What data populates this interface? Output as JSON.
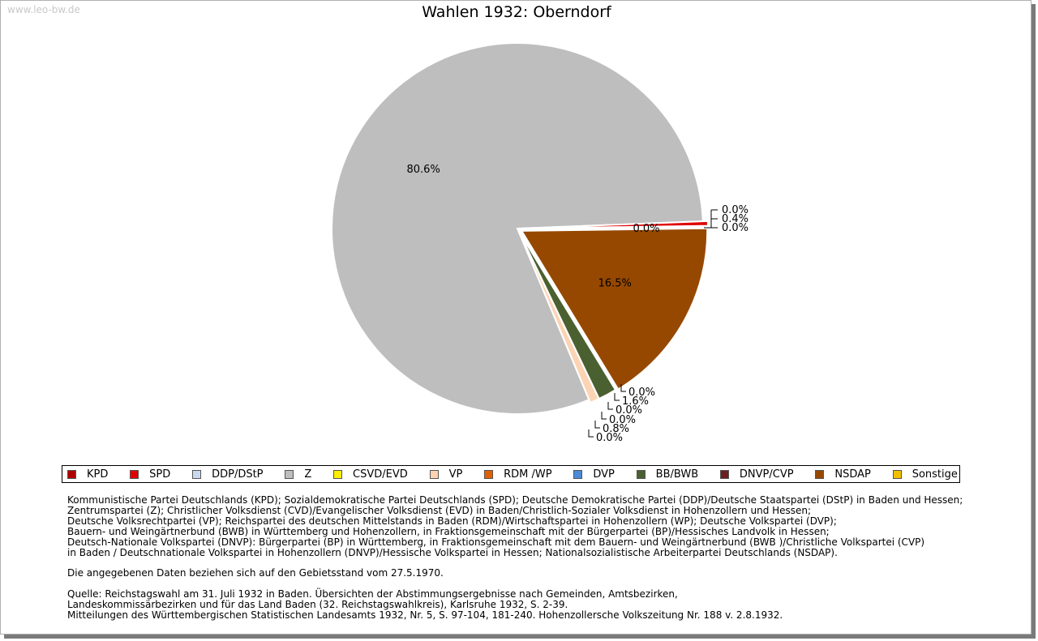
{
  "watermark": "www.leo-bw.de",
  "chart_data": {
    "type": "pie",
    "title": "Wahlen 1932: Oberndorf",
    "categories": [
      "KPD",
      "SPD",
      "DDP/DStP",
      "Z",
      "CSVD/EVD",
      "VP",
      "RDM /WP",
      "DVP",
      "BB/BWB",
      "DNVP/CVP",
      "NSDAP",
      "Sonstige"
    ],
    "values": [
      0.0,
      0.4,
      0.0,
      80.6,
      0.0,
      0.8,
      0.0,
      0.0,
      1.6,
      0.0,
      16.5,
      0.0
    ],
    "labels": [
      "0.0%",
      "0.4%",
      "0.0%",
      "80.6%",
      "0.0%",
      "0.8%",
      "0.0%",
      "0.0%",
      "1.6%",
      "0.0%",
      "16.5%",
      "0.0%"
    ],
    "colors": [
      "#b00000",
      "#e00000",
      "#c8d8f0",
      "#bebebe",
      "#ffee00",
      "#fcd3b3",
      "#e06000",
      "#4a8ad8",
      "#4a6030",
      "#6a2020",
      "#964800",
      "#f0c000"
    ],
    "legend_position": "bottom"
  },
  "notes": [
    "Kommunistische Partei Deutschlands (KPD); Sozialdemokratische Partei Deutschlands (SPD); Deutsche Demokratische Partei (DDP)/Deutsche Staatspartei (DStP) in Baden und Hessen;",
    "Zentrumspartei (Z); Christlicher Volksdienst (CVD)/Evangelischer Volksdienst (EVD) in Baden/Christlich-Sozialer Volksdienst in Hohenzollern und Hessen;",
    "Deutsche Volksrechtpartei (VP); Reichspartei des deutschen Mittelstands in Baden (RDM)/Wirtschaftspartei in Hohenzollern (WP); Deutsche Volkspartei (DVP);",
    "Bauern- und Weingärtnerbund (BWB) in Württemberg und Hohenzollern, in Fraktionsgemeinschaft mit der Bürgerpartei (BP)/Hessisches Landvolk in Hessen;",
    "Deutsch-Nationale Volkspartei (DNVP): Bürgerpartei (BP) in Württemberg, in Fraktionsgemeinschaft mit dem Bauern- und Weingärtnerbund (BWB )/Christliche Volkspartei (CVP)",
    "in Baden / Deutschnationale Volkspartei in Hohenzollern (DNVP)/Hessische Volkspartei in Hessen; Nationalsozialistische Arbeiterpartei Deutschlands (NSDAP).",
    "",
    "Die angegebenen Daten beziehen sich auf den Gebietsstand vom 27.5.1970.",
    "",
    "Quelle: Reichstagswahl am 31. Juli 1932 in Baden. Übersichten der Abstimmungsergebnisse nach Gemeinden, Amtsbezirken,",
    "Landeskommissärbezirken und für das Land Baden (32. Reichstagswahlkreis), Karlsruhe 1932, S. 2-39.",
    "Mitteilungen des Württembergischen Statistischen Landesamts 1932, Nr. 5, S. 97-104, 181-240. Hohenzollersche Volkszeitung Nr. 188 v. 2.8.1932."
  ]
}
